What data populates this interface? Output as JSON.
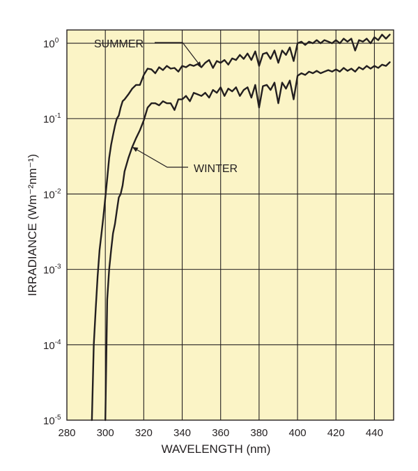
{
  "chart_data": {
    "type": "line",
    "xlabel": "WAVELENGTH (nm)",
    "ylabel": "IRRADIANCE (Wm⁻²nm⁻¹)",
    "y_scale": "log",
    "xlim": [
      280,
      450
    ],
    "ylim": [
      1e-05,
      1.5
    ],
    "x_ticks": [
      280,
      300,
      320,
      340,
      360,
      380,
      400,
      420,
      440
    ],
    "x_tick_labels": [
      "280",
      "300",
      "320",
      "340",
      "360",
      "380",
      "400",
      "420",
      "440"
    ],
    "y_ticks": [
      {
        "value": 1e-05,
        "base": "10",
        "exp": "-5"
      },
      {
        "value": 0.0001,
        "base": "10",
        "exp": "-4"
      },
      {
        "value": 0.001,
        "base": "10",
        "exp": "-3"
      },
      {
        "value": 0.01,
        "base": "10",
        "exp": "-2"
      },
      {
        "value": 0.1,
        "base": "10",
        "exp": "-1"
      },
      {
        "value": 1,
        "base": "10",
        "exp": "0"
      }
    ],
    "grid": true,
    "colors": {
      "background": "#fbf4c6",
      "line": "#231f20"
    },
    "series": [
      {
        "name": "SUMMER",
        "x": [
          293,
          294,
          295,
          296,
          297,
          298,
          299,
          300,
          301,
          302,
          303,
          304,
          305,
          306,
          307,
          308,
          309,
          310,
          312,
          314,
          316,
          318,
          320,
          322,
          324,
          326,
          328,
          330,
          332,
          334,
          336,
          338,
          340,
          342,
          344,
          346,
          348,
          350,
          352,
          354,
          356,
          358,
          360,
          362,
          364,
          366,
          368,
          370,
          372,
          374,
          376,
          378,
          380,
          382,
          384,
          386,
          388,
          390,
          392,
          394,
          396,
          398,
          400,
          402,
          404,
          406,
          408,
          410,
          412,
          414,
          416,
          418,
          420,
          422,
          424,
          426,
          428,
          430,
          432,
          434,
          436,
          438,
          440,
          442,
          444,
          446,
          448
        ],
        "y": [
          1e-05,
          0.0001,
          0.0003,
          0.0008,
          0.0018,
          0.003,
          0.005,
          0.009,
          0.016,
          0.03,
          0.045,
          0.06,
          0.08,
          0.1,
          0.11,
          0.14,
          0.17,
          0.18,
          0.21,
          0.25,
          0.28,
          0.28,
          0.38,
          0.46,
          0.45,
          0.4,
          0.48,
          0.44,
          0.5,
          0.46,
          0.47,
          0.42,
          0.5,
          0.48,
          0.52,
          0.5,
          0.53,
          0.48,
          0.55,
          0.6,
          0.47,
          0.58,
          0.55,
          0.6,
          0.52,
          0.63,
          0.6,
          0.7,
          0.62,
          0.73,
          0.6,
          0.78,
          0.5,
          0.72,
          0.75,
          0.62,
          0.8,
          0.55,
          0.8,
          0.7,
          0.88,
          0.58,
          1.0,
          1.05,
          0.95,
          1.05,
          1.0,
          1.1,
          1.0,
          1.1,
          1.05,
          1.0,
          1.1,
          1.0,
          1.15,
          1.05,
          1.15,
          0.8,
          1.1,
          1.05,
          1.15,
          1.0,
          1.2,
          1.1,
          1.3,
          1.15,
          1.3
        ]
      },
      {
        "name": "WINTER",
        "x": [
          300,
          301,
          302,
          303,
          304,
          305,
          306,
          307,
          308,
          309,
          310,
          312,
          314,
          316,
          318,
          320,
          322,
          324,
          326,
          328,
          330,
          332,
          334,
          336,
          338,
          340,
          342,
          344,
          346,
          348,
          350,
          352,
          354,
          356,
          358,
          360,
          362,
          364,
          366,
          368,
          370,
          372,
          374,
          376,
          378,
          380,
          382,
          384,
          386,
          388,
          390,
          392,
          394,
          396,
          398,
          400,
          402,
          404,
          406,
          408,
          410,
          412,
          414,
          416,
          418,
          420,
          422,
          424,
          426,
          428,
          430,
          432,
          434,
          436,
          438,
          440,
          442,
          444,
          446,
          448
        ],
        "y": [
          1e-05,
          0.0004,
          0.001,
          0.0018,
          0.003,
          0.004,
          0.006,
          0.009,
          0.01,
          0.013,
          0.02,
          0.03,
          0.042,
          0.055,
          0.07,
          0.095,
          0.14,
          0.16,
          0.16,
          0.15,
          0.17,
          0.16,
          0.16,
          0.13,
          0.18,
          0.18,
          0.2,
          0.17,
          0.22,
          0.21,
          0.2,
          0.22,
          0.19,
          0.24,
          0.22,
          0.26,
          0.2,
          0.25,
          0.23,
          0.26,
          0.2,
          0.24,
          0.26,
          0.19,
          0.28,
          0.14,
          0.27,
          0.28,
          0.24,
          0.3,
          0.16,
          0.3,
          0.25,
          0.32,
          0.18,
          0.37,
          0.4,
          0.38,
          0.42,
          0.4,
          0.43,
          0.4,
          0.42,
          0.44,
          0.42,
          0.45,
          0.42,
          0.47,
          0.43,
          0.46,
          0.42,
          0.48,
          0.45,
          0.5,
          0.46,
          0.5,
          0.47,
          0.52,
          0.5,
          0.56
        ]
      }
    ],
    "annotations": [
      {
        "text": "SUMMER",
        "series": "SUMMER",
        "point_x": 350
      },
      {
        "text": "WINTER",
        "series": "WINTER",
        "point_x": 314
      }
    ]
  }
}
